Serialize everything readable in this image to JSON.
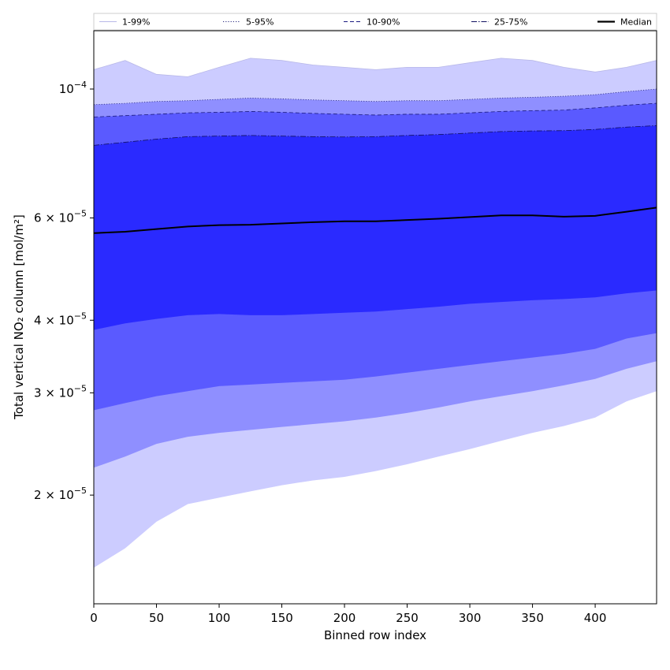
{
  "chart_data": {
    "type": "area",
    "xlabel": "Binned row index",
    "ylabel": "Total vertical NO₂ column [mol/m²]",
    "yscale": "log",
    "xlim": [
      0,
      449
    ],
    "ylim": [
      1.3e-05,
      0.000126
    ],
    "grid": false,
    "legend_placement": "top",
    "x_ticks": [
      0,
      50,
      100,
      150,
      200,
      250,
      300,
      350,
      400
    ],
    "y_ticks": [
      {
        "value": 0.0001,
        "base": "10",
        "exp": "−4"
      },
      {
        "value": 6e-05,
        "base": "6 × 10",
        "exp": "−5"
      },
      {
        "value": 4e-05,
        "base": "4 × 10",
        "exp": "−5"
      },
      {
        "value": 3e-05,
        "base": "3 × 10",
        "exp": "−5"
      },
      {
        "value": 2e-05,
        "base": "2 × 10",
        "exp": "−5"
      }
    ],
    "x": [
      0,
      25,
      50,
      75,
      100,
      125,
      150,
      175,
      200,
      225,
      250,
      275,
      300,
      325,
      350,
      375,
      400,
      425,
      449
    ],
    "bands": [
      {
        "name": "1-99%",
        "color": "#ccccff",
        "line_style": "solid",
        "line_color": "#b8b8e8",
        "lower": [
          1.5e-05,
          1.62e-05,
          1.8e-05,
          1.93e-05,
          1.98e-05,
          2.03e-05,
          2.08e-05,
          2.12e-05,
          2.15e-05,
          2.2e-05,
          2.26e-05,
          2.33e-05,
          2.4e-05,
          2.48e-05,
          2.56e-05,
          2.63e-05,
          2.72e-05,
          2.9e-05,
          3.02e-05
        ],
        "upper": [
          0.000108,
          0.000112,
          0.000106,
          0.000105,
          0.000109,
          0.000113,
          0.000112,
          0.00011,
          0.000109,
          0.000108,
          0.000109,
          0.000109,
          0.000111,
          0.000113,
          0.000112,
          0.000109,
          0.000107,
          0.000109,
          0.000112
        ]
      },
      {
        "name": "5-95%",
        "color": "#8f8fff",
        "line_style": "dotted",
        "line_color": "#2a2a80",
        "lower": [
          2.23e-05,
          2.33e-05,
          2.45e-05,
          2.52e-05,
          2.56e-05,
          2.59e-05,
          2.62e-05,
          2.65e-05,
          2.68e-05,
          2.72e-05,
          2.77e-05,
          2.83e-05,
          2.9e-05,
          2.96e-05,
          3.02e-05,
          3.09e-05,
          3.17e-05,
          3.3e-05,
          3.4e-05
        ],
        "upper": [
          9.4e-05,
          9.45e-05,
          9.52e-05,
          9.55e-05,
          9.6e-05,
          9.65e-05,
          9.62e-05,
          9.58e-05,
          9.55e-05,
          9.52e-05,
          9.55e-05,
          9.55e-05,
          9.6e-05,
          9.65e-05,
          9.68e-05,
          9.72e-05,
          9.78e-05,
          9.9e-05,
          0.0001
        ]
      },
      {
        "name": "10-90%",
        "color": "#5a5aff",
        "line_style": "dashed",
        "line_color": "#1a1a80",
        "lower": [
          2.8e-05,
          2.88e-05,
          2.96e-05,
          3.02e-05,
          3.08e-05,
          3.1e-05,
          3.12e-05,
          3.14e-05,
          3.16e-05,
          3.2e-05,
          3.25e-05,
          3.3e-05,
          3.35e-05,
          3.4e-05,
          3.45e-05,
          3.5e-05,
          3.57e-05,
          3.72e-05,
          3.8e-05
        ],
        "upper": [
          8.95e-05,
          9e-05,
          9.05e-05,
          9.1e-05,
          9.12e-05,
          9.15e-05,
          9.12e-05,
          9.08e-05,
          9.05e-05,
          9.02e-05,
          9.05e-05,
          9.05e-05,
          9.1e-05,
          9.15e-05,
          9.18e-05,
          9.2e-05,
          9.28e-05,
          9.38e-05,
          9.45e-05
        ]
      },
      {
        "name": "25-75%",
        "color": "#2a2aff",
        "line_style": "dashdot",
        "line_color": "#101060",
        "lower": [
          3.85e-05,
          3.95e-05,
          4.02e-05,
          4.08e-05,
          4.1e-05,
          4.08e-05,
          4.08e-05,
          4.1e-05,
          4.12e-05,
          4.14e-05,
          4.18e-05,
          4.22e-05,
          4.27e-05,
          4.3e-05,
          4.33e-05,
          4.35e-05,
          4.38e-05,
          4.45e-05,
          4.5e-05
        ],
        "upper": [
          8e-05,
          8.1e-05,
          8.2e-05,
          8.28e-05,
          8.3e-05,
          8.32e-05,
          8.3e-05,
          8.28e-05,
          8.27e-05,
          8.28e-05,
          8.32e-05,
          8.35e-05,
          8.4e-05,
          8.45e-05,
          8.47e-05,
          8.48e-05,
          8.52e-05,
          8.6e-05,
          8.65e-05
        ]
      }
    ],
    "median": {
      "name": "Median",
      "color": "#000000",
      "values": [
        5.65e-05,
        5.68e-05,
        5.74e-05,
        5.8e-05,
        5.83e-05,
        5.84e-05,
        5.87e-05,
        5.9e-05,
        5.92e-05,
        5.92e-05,
        5.95e-05,
        5.98e-05,
        6.02e-05,
        6.06e-05,
        6.06e-05,
        6.03e-05,
        6.05e-05,
        6.15e-05,
        6.25e-05
      ]
    }
  }
}
